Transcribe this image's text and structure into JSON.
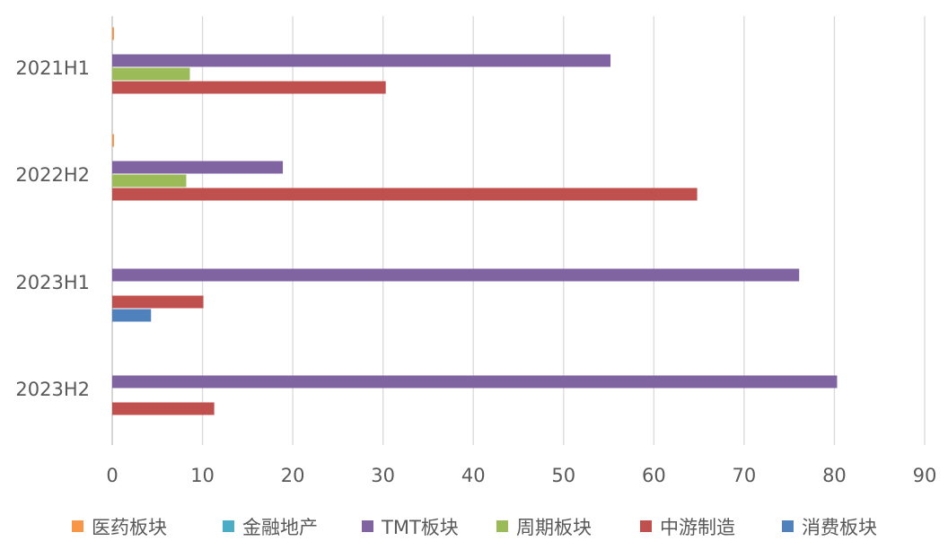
{
  "chart_data": {
    "type": "bar",
    "orientation": "horizontal",
    "title": "",
    "xlabel": "",
    "ylabel": "",
    "categories": [
      "2021H1",
      "2022H2",
      "2023H1",
      "2023H2"
    ],
    "xlim": [
      0,
      90
    ],
    "x_ticks": [
      "0",
      "10",
      "20",
      "30",
      "40",
      "50",
      "60",
      "70",
      "80",
      "90"
    ],
    "grid": "vertical",
    "legend_position": "bottom",
    "series": [
      {
        "name": "医药板块",
        "color": "#F79646",
        "values": [
          0.2,
          0.2,
          0,
          0
        ]
      },
      {
        "name": "金融地产",
        "color": "#4BACC6",
        "values": [
          0,
          0,
          0,
          0
        ]
      },
      {
        "name": "TMT板块",
        "color": "#8064A2",
        "values": [
          55.2,
          18.9,
          76.1,
          80.3
        ]
      },
      {
        "name": "周期板块",
        "color": "#9BBB59",
        "values": [
          8.6,
          8.2,
          0,
          0
        ]
      },
      {
        "name": "中游制造",
        "color": "#C0504D",
        "values": [
          30.3,
          64.8,
          10.1,
          11.3
        ]
      },
      {
        "name": "消费板块",
        "color": "#4F81BD",
        "values": [
          0,
          0,
          4.3,
          0
        ]
      }
    ]
  }
}
